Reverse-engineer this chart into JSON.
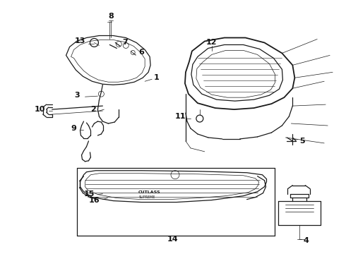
{
  "background_color": "#ffffff",
  "line_color": "#1a1a1a",
  "text_color": "#111111",
  "lw_main": 0.9,
  "lw_thin": 0.5,
  "lw_thick": 1.3,
  "label_fs": 8,
  "figsize": [
    4.9,
    3.6
  ],
  "dpi": 100
}
